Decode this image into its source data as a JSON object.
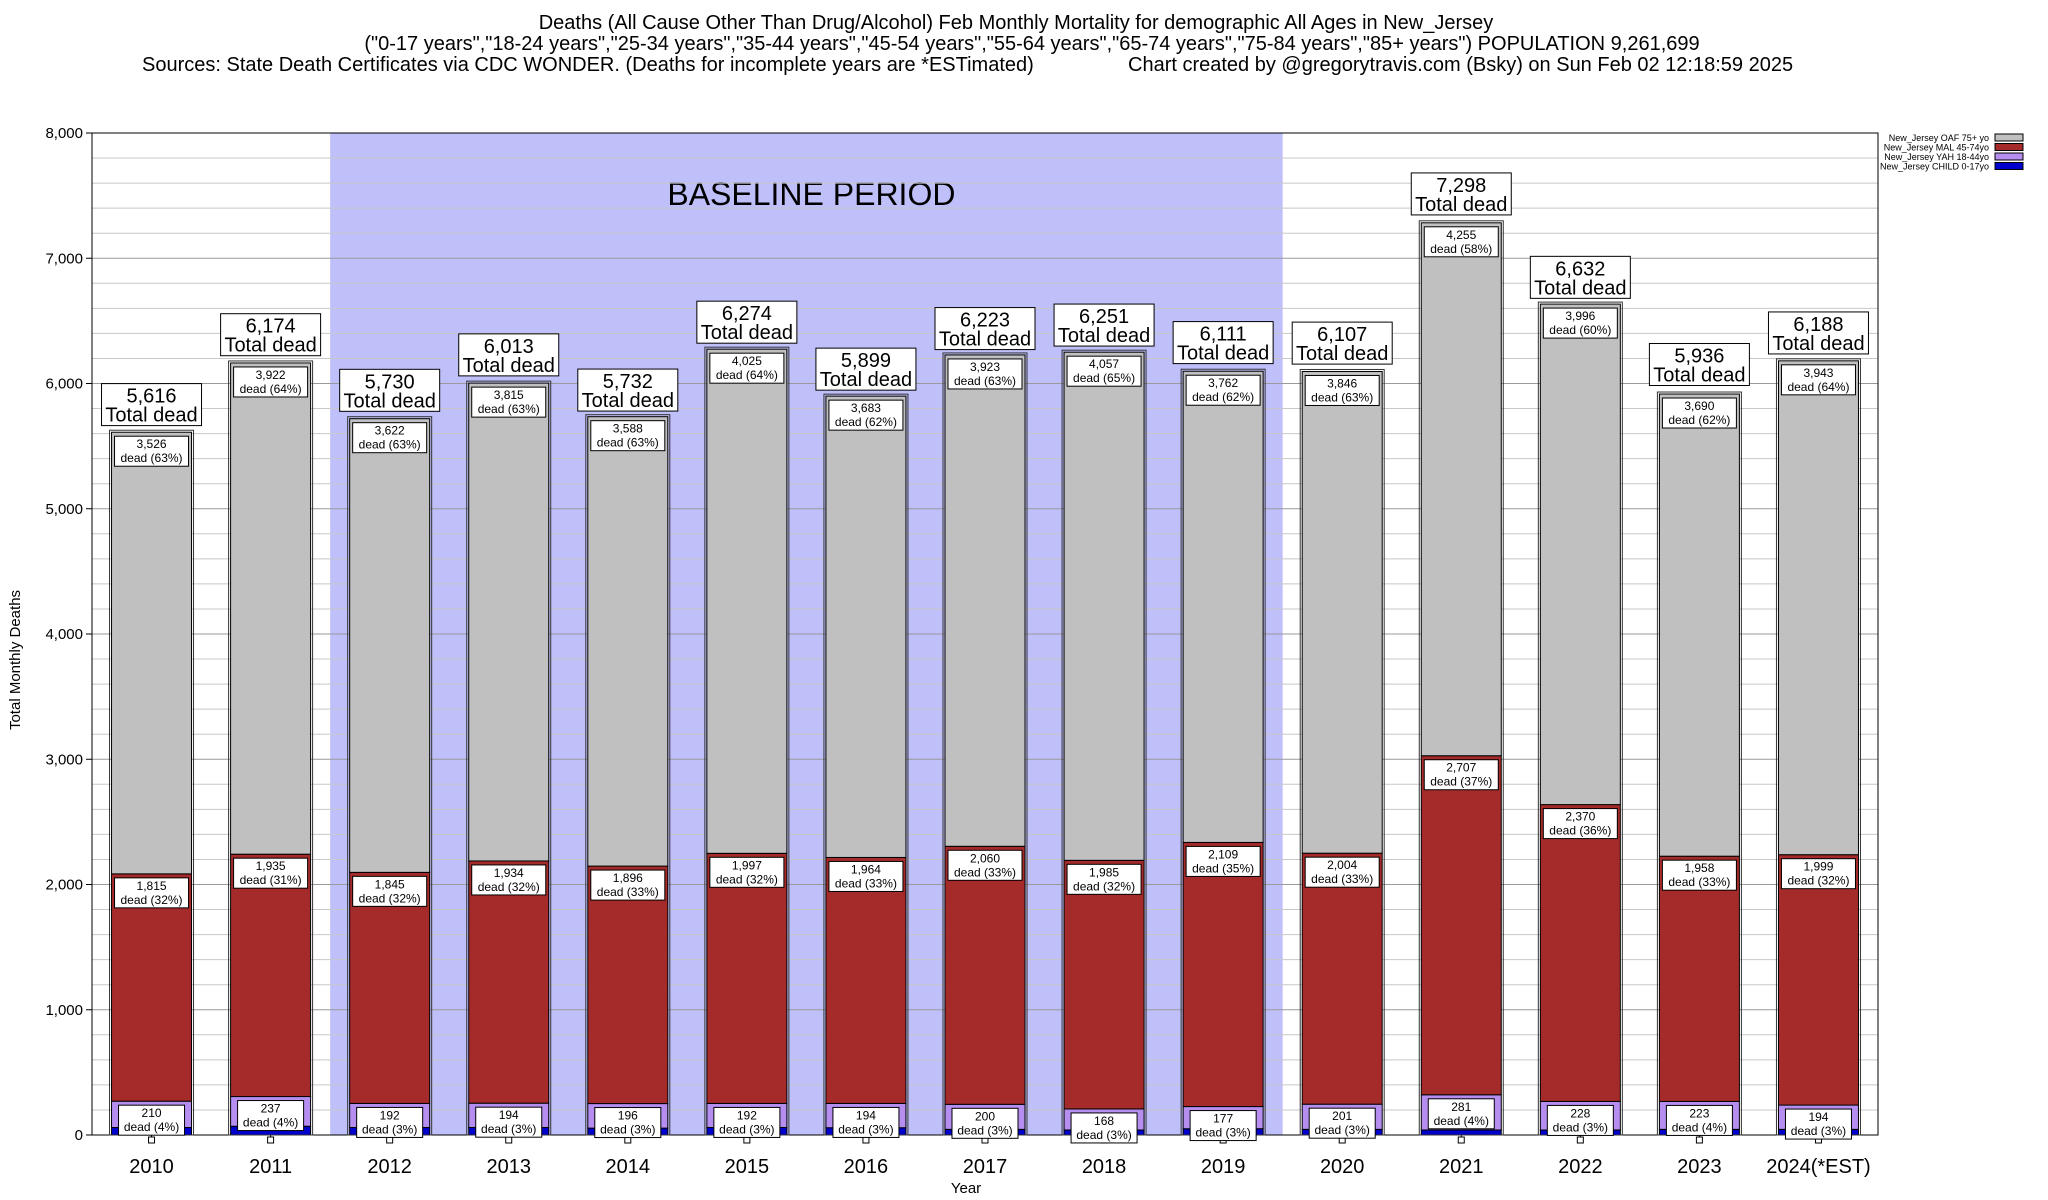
{
  "chart_data": {
    "type": "bar",
    "stacked": true,
    "title": "Deaths (All Cause Other Than Drug/Alcohol) Feb Monthly Mortality for demographic All Ages in New_Jersey",
    "subtitle": "(\"0-17 years\",\"18-24 years\",\"25-34 years\",\"35-44 years\",\"45-54 years\",\"55-64 years\",\"65-74 years\",\"75-84 years\",\"85+ years\") POPULATION 9,261,699",
    "sources": "Sources: State Death Certificates via CDC WONDER. (Deaths for incomplete years are *ESTimated)",
    "credit": "Chart created by @gregorytravis.com (Bsky) on Sun Feb 02 12:18:59 2025",
    "xlabel": "Year",
    "ylabel": "Total Monthly Deaths",
    "ylim": [
      0,
      8000
    ],
    "yticks": [
      0,
      1000,
      2000,
      3000,
      4000,
      5000,
      6000,
      7000,
      8000
    ],
    "ytick_labels": [
      "0",
      "1,000",
      "2,000",
      "3,000",
      "4,000",
      "5,000",
      "6,000",
      "7,000",
      "8,000"
    ],
    "grid": true,
    "legend_position": "top-right",
    "categories": [
      "2010",
      "2011",
      "2012",
      "2013",
      "2014",
      "2015",
      "2016",
      "2017",
      "2018",
      "2019",
      "2020",
      "2021",
      "2022",
      "2023",
      "2024(*EST)"
    ],
    "baseline": {
      "label": "BASELINE PERIOD",
      "start": "2012",
      "end": "2019",
      "color": "#bfbffa"
    },
    "total_label_suffix": "Total dead",
    "totals": [
      5616,
      6174,
      5730,
      6013,
      5732,
      6274,
      5899,
      6223,
      6251,
      6111,
      6107,
      7298,
      6632,
      5936,
      6188
    ],
    "total_labels": [
      "5,616",
      "6,174",
      "5,730",
      "6,013",
      "5,732",
      "6,274",
      "5,899",
      "6,223",
      "6,251",
      "6,111",
      "6,107",
      "7,298",
      "6,632",
      "5,936",
      "6,188"
    ],
    "series": [
      {
        "name": "New_Jersey CHILD 0-17yo",
        "color": "#0000cc",
        "values": [
          60,
          70,
          60,
          60,
          55,
          60,
          58,
          45,
          40,
          50,
          45,
          40,
          40,
          45,
          45
        ],
        "labels": [],
        "pct_labels": []
      },
      {
        "name": "New_Jersey YAH 18-44yo",
        "color": "#b58ef0",
        "values": [
          210,
          237,
          192,
          194,
          196,
          192,
          194,
          200,
          168,
          177,
          201,
          281,
          228,
          223,
          194
        ],
        "labels": [
          "210",
          "237",
          "192",
          "194",
          "196",
          "192",
          "194",
          "200",
          "168",
          "177",
          "201",
          "281",
          "228",
          "223",
          "194"
        ],
        "pct_labels": [
          "dead (4%)",
          "dead (4%)",
          "dead (3%)",
          "dead (3%)",
          "dead (3%)",
          "dead (3%)",
          "dead (3%)",
          "dead (3%)",
          "dead (3%)",
          "dead (3%)",
          "dead (3%)",
          "dead (4%)",
          "dead (3%)",
          "dead (4%)",
          "dead (3%)"
        ]
      },
      {
        "name": "New_Jersey MAL 45-74yo",
        "color": "#a52a2a",
        "values": [
          1815,
          1935,
          1845,
          1934,
          1896,
          1997,
          1964,
          2060,
          1985,
          2109,
          2004,
          2707,
          2370,
          1958,
          1999
        ],
        "labels": [
          "1,815",
          "1,935",
          "1,845",
          "1,934",
          "1,896",
          "1,997",
          "1,964",
          "2,060",
          "1,985",
          "2,109",
          "2,004",
          "2,707",
          "2,370",
          "1,958",
          "1,999"
        ],
        "pct_labels": [
          "dead (32%)",
          "dead (31%)",
          "dead (32%)",
          "dead (32%)",
          "dead (33%)",
          "dead (32%)",
          "dead (33%)",
          "dead (33%)",
          "dead (32%)",
          "dead (35%)",
          "dead (33%)",
          "dead (37%)",
          "dead (36%)",
          "dead (33%)",
          "dead (32%)"
        ]
      },
      {
        "name": "New_Jersey OAF 75+ yo",
        "color": "#c0c0c0",
        "values": [
          3526,
          3922,
          3622,
          3815,
          3588,
          4025,
          3683,
          3923,
          4057,
          3762,
          3846,
          4255,
          3996,
          3690,
          3943
        ],
        "labels": [
          "3,526",
          "3,922",
          "3,622",
          "3,815",
          "3,588",
          "4,025",
          "3,683",
          "3,923",
          "4,057",
          "3,762",
          "3,846",
          "4,255",
          "3,996",
          "3,690",
          "3,943"
        ],
        "pct_labels": [
          "dead (63%)",
          "dead (64%)",
          "dead (63%)",
          "dead (63%)",
          "dead (63%)",
          "dead (64%)",
          "dead (62%)",
          "dead (63%)",
          "dead (65%)",
          "dead (62%)",
          "dead (63%)",
          "dead (58%)",
          "dead (60%)",
          "dead (62%)",
          "dead (64%)"
        ]
      }
    ],
    "legend_order": [
      "New_Jersey OAF 75+ yo",
      "New_Jersey MAL 45-74yo",
      "New_Jersey YAH 18-44yo",
      "New_Jersey CHILD 0-17yo"
    ]
  }
}
